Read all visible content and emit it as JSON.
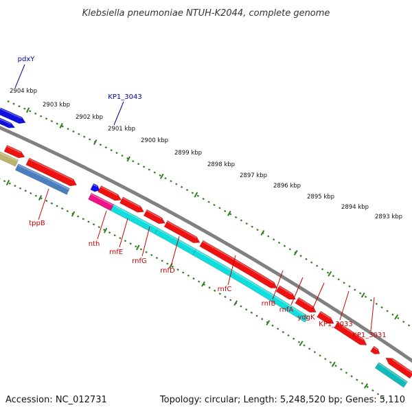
{
  "title": "Klebsiella pneumoniae NTUH-K2044, complete genome",
  "accession": "Accession: NC_012731",
  "summary": "Topology: circular; Length: 5,248,520 bp; Genes: 5,110",
  "colors": {
    "plus_label": "#000099",
    "minus_label": "#cc0000",
    "ruler_ticks": "#2e7d1e",
    "backbone": "#808080"
  },
  "scale_labels": [
    "2904 kbp",
    "2903 kbp",
    "2902 kbp",
    "2901 kbp",
    "2900 kbp",
    "2899 kbp",
    "2898 kbp",
    "2897 kbp",
    "2896 kbp",
    "2895 kbp",
    "2894 kbp",
    "2893 kbp"
  ],
  "gene_labels": [
    "pdxY",
    "KP1_3043",
    "tppB",
    "nth",
    "rnfE",
    "rnfG",
    "rnfD",
    "rnfC",
    "rnfB",
    "rnfA",
    "ydgK",
    "KP1_3033",
    "KP1_3031"
  ]
}
